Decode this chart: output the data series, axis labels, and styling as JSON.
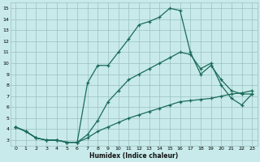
{
  "background_color": "#c8eaea",
  "grid_color": "#9bbfbf",
  "line_color": "#1a6b5a",
  "marker": "+",
  "markersize": 3,
  "linewidth": 0.9,
  "markeredgewidth": 0.9,
  "xlim": [
    -0.5,
    23.5
  ],
  "ylim": [
    2.5,
    15.5
  ],
  "xticks": [
    0,
    1,
    2,
    3,
    4,
    5,
    6,
    7,
    8,
    9,
    10,
    11,
    12,
    13,
    14,
    15,
    16,
    17,
    18,
    19,
    20,
    21,
    22,
    23
  ],
  "yticks": [
    3,
    4,
    5,
    6,
    7,
    8,
    9,
    10,
    11,
    12,
    13,
    14,
    15
  ],
  "xlabel": "Humidex (Indice chaleur)",
  "series1_x": [
    0,
    1,
    2,
    3,
    4,
    5,
    6,
    7,
    8,
    9,
    10,
    11,
    12,
    13,
    14,
    15,
    16,
    17,
    18,
    19,
    20,
    21,
    22,
    23
  ],
  "series1_y": [
    4.2,
    3.8,
    3.2,
    3.0,
    3.0,
    2.8,
    2.8,
    8.2,
    9.8,
    9.8,
    11.0,
    12.2,
    13.5,
    13.8,
    14.2,
    15.0,
    14.8,
    11.0,
    9.0,
    9.8,
    8.5,
    7.5,
    7.2,
    7.2
  ],
  "series2_x": [
    0,
    1,
    2,
    3,
    4,
    5,
    6,
    7,
    8,
    9,
    10,
    11,
    12,
    13,
    14,
    15,
    16,
    17,
    18,
    19,
    20,
    21,
    22,
    23
  ],
  "series2_y": [
    4.2,
    3.8,
    3.2,
    3.0,
    3.0,
    2.8,
    2.8,
    3.5,
    4.8,
    6.5,
    7.5,
    8.5,
    9.0,
    9.5,
    10.0,
    10.5,
    11.0,
    10.8,
    9.5,
    10.0,
    8.0,
    6.8,
    6.2,
    7.2
  ],
  "series3_x": [
    0,
    1,
    2,
    3,
    4,
    5,
    6,
    7,
    8,
    9,
    10,
    11,
    12,
    13,
    14,
    15,
    16,
    17,
    18,
    19,
    20,
    21,
    22,
    23
  ],
  "series3_y": [
    4.2,
    3.8,
    3.2,
    3.0,
    3.0,
    2.8,
    2.8,
    3.2,
    3.8,
    4.2,
    4.6,
    5.0,
    5.3,
    5.6,
    5.9,
    6.2,
    6.5,
    6.6,
    6.7,
    6.8,
    7.0,
    7.2,
    7.3,
    7.5
  ]
}
